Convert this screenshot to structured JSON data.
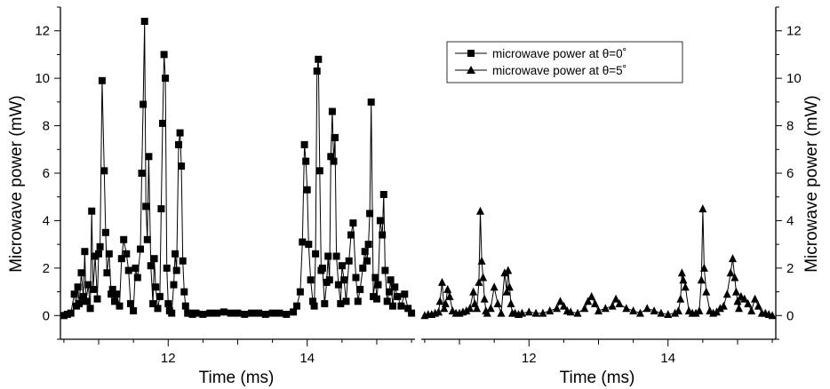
{
  "chart_data": {
    "type": "line",
    "panels": [
      {
        "id": "left",
        "xlim": [
          10.45,
          15.55
        ],
        "ylim": [
          -1.0,
          13.0
        ],
        "xticks": [
          12,
          14
        ],
        "xlabel": "Time (ms)",
        "series": "theta0"
      },
      {
        "id": "right",
        "xlim": [
          10.45,
          15.55
        ],
        "ylim": [
          -1.0,
          13.0
        ],
        "xticks": [
          12,
          14
        ],
        "xlabel": "Time (ms)",
        "series": "theta5"
      }
    ],
    "yticks": [
      0,
      2,
      4,
      6,
      8,
      10,
      12
    ],
    "ylabel": "Microwave power (mW)",
    "grid": false,
    "legend_position": "top-right",
    "series": [
      {
        "key": "theta0",
        "name": "microwave power at θ=0˚",
        "marker": "square",
        "x": [
          10.5,
          10.55,
          10.6,
          10.65,
          10.68,
          10.7,
          10.72,
          10.75,
          10.78,
          10.8,
          10.82,
          10.85,
          10.88,
          10.9,
          10.92,
          10.95,
          10.98,
          11.0,
          11.02,
          11.05,
          11.08,
          11.1,
          11.12,
          11.15,
          11.18,
          11.2,
          11.23,
          11.26,
          11.3,
          11.33,
          11.36,
          11.4,
          11.43,
          11.46,
          11.5,
          11.53,
          11.56,
          11.6,
          11.62,
          11.64,
          11.66,
          11.68,
          11.7,
          11.72,
          11.75,
          11.78,
          11.8,
          11.82,
          11.85,
          11.88,
          11.9,
          11.92,
          11.94,
          11.96,
          11.98,
          12.0,
          12.02,
          12.05,
          12.08,
          12.1,
          12.12,
          12.15,
          12.17,
          12.19,
          12.21,
          12.23,
          12.25,
          12.28,
          12.3,
          12.35,
          12.4,
          12.5,
          12.6,
          12.7,
          12.8,
          12.9,
          13.0,
          13.1,
          13.2,
          13.3,
          13.4,
          13.5,
          13.6,
          13.7,
          13.8,
          13.85,
          13.9,
          13.93,
          13.96,
          13.98,
          14.0,
          14.02,
          14.05,
          14.08,
          14.1,
          14.12,
          14.14,
          14.16,
          14.18,
          14.2,
          14.22,
          14.25,
          14.28,
          14.3,
          14.32,
          14.34,
          14.36,
          14.38,
          14.4,
          14.42,
          14.45,
          14.48,
          14.5,
          14.53,
          14.56,
          14.6,
          14.63,
          14.66,
          14.7,
          14.73,
          14.76,
          14.8,
          14.83,
          14.86,
          14.88,
          14.9,
          14.92,
          14.95,
          14.98,
          15.0,
          15.02,
          15.05,
          15.08,
          15.1,
          15.12,
          15.15,
          15.18,
          15.2,
          15.23,
          15.26,
          15.3,
          15.35,
          15.4,
          15.45,
          15.5
        ],
        "y": [
          0.0,
          0.05,
          0.1,
          0.9,
          0.4,
          1.2,
          0.5,
          1.8,
          0.8,
          2.7,
          0.6,
          1.3,
          0.3,
          4.4,
          1.1,
          2.5,
          0.7,
          2.6,
          2.9,
          9.9,
          6.1,
          3.5,
          1.8,
          2.6,
          0.9,
          1.1,
          0.6,
          0.9,
          0.4,
          2.4,
          3.2,
          2.6,
          1.9,
          0.5,
          0.2,
          2.0,
          1.6,
          2.8,
          6.0,
          8.9,
          12.4,
          4.6,
          3.2,
          6.7,
          2.1,
          0.5,
          2.4,
          1.2,
          0.3,
          0.8,
          4.5,
          8.1,
          11.0,
          10.0,
          2.0,
          0.5,
          0.2,
          0.1,
          1.3,
          2.6,
          1.9,
          7.2,
          7.7,
          6.3,
          2.3,
          1.0,
          0.4,
          0.1,
          0.1,
          0.05,
          0.1,
          0.05,
          0.1,
          0.1,
          0.15,
          0.1,
          0.1,
          0.05,
          0.1,
          0.1,
          0.05,
          0.1,
          0.1,
          0.05,
          0.15,
          0.4,
          1.0,
          3.1,
          7.2,
          6.5,
          5.3,
          3.0,
          1.5,
          0.6,
          0.4,
          2.6,
          10.3,
          10.8,
          6.1,
          1.9,
          2.0,
          0.5,
          1.4,
          2.5,
          1.5,
          6.7,
          8.6,
          6.5,
          7.5,
          2.5,
          1.3,
          0.5,
          2.1,
          1.5,
          0.6,
          2.3,
          3.4,
          3.9,
          1.6,
          0.6,
          1.1,
          2.0,
          2.7,
          2.3,
          3.0,
          4.3,
          9.0,
          0.8,
          1.6,
          0.7,
          1.3,
          4.0,
          3.4,
          5.1,
          1.9,
          0.6,
          1.0,
          1.5,
          0.4,
          1.2,
          0.8,
          0.4,
          0.9,
          0.3,
          0.1
        ]
      },
      {
        "key": "theta5",
        "name": "microwave power at θ=5˚",
        "marker": "triangle",
        "x": [
          10.5,
          10.55,
          10.6,
          10.65,
          10.7,
          10.72,
          10.75,
          10.78,
          10.8,
          10.83,
          10.86,
          10.9,
          10.95,
          11.0,
          11.05,
          11.1,
          11.15,
          11.2,
          11.22,
          11.25,
          11.28,
          11.3,
          11.32,
          11.34,
          11.36,
          11.38,
          11.4,
          11.45,
          11.5,
          11.55,
          11.6,
          11.65,
          11.68,
          11.7,
          11.72,
          11.74,
          11.76,
          11.8,
          11.85,
          11.9,
          12.0,
          12.1,
          12.2,
          12.3,
          12.4,
          12.45,
          12.5,
          12.55,
          12.6,
          12.7,
          12.8,
          12.85,
          12.9,
          12.95,
          13.0,
          13.1,
          13.2,
          13.25,
          13.3,
          13.4,
          13.5,
          13.6,
          13.7,
          13.8,
          13.9,
          14.0,
          14.1,
          14.15,
          14.18,
          14.2,
          14.22,
          14.25,
          14.3,
          14.35,
          14.4,
          14.45,
          14.48,
          14.5,
          14.52,
          14.55,
          14.6,
          14.65,
          14.7,
          14.75,
          14.8,
          14.85,
          14.9,
          14.93,
          14.96,
          14.98,
          15.0,
          15.02,
          15.05,
          15.1,
          15.15,
          15.2,
          15.25,
          15.3,
          15.35,
          15.4,
          15.45,
          15.5
        ],
        "y": [
          0.0,
          0.05,
          0.05,
          0.1,
          0.15,
          0.6,
          1.4,
          0.3,
          0.5,
          1.1,
          0.8,
          0.2,
          0.1,
          0.1,
          0.15,
          0.2,
          0.3,
          1.0,
          0.5,
          0.3,
          1.4,
          4.4,
          2.3,
          1.6,
          0.7,
          0.2,
          0.1,
          0.3,
          1.2,
          0.5,
          0.1,
          1.8,
          1.0,
          1.9,
          1.2,
          0.5,
          0.1,
          0.1,
          0.05,
          0.1,
          0.15,
          0.1,
          0.1,
          0.2,
          0.3,
          0.6,
          0.4,
          0.2,
          0.15,
          0.1,
          0.3,
          0.6,
          0.8,
          0.5,
          0.2,
          0.3,
          0.4,
          0.7,
          0.5,
          0.3,
          0.2,
          0.1,
          0.3,
          0.2,
          0.1,
          0.05,
          0.1,
          0.2,
          0.7,
          1.8,
          1.5,
          1.2,
          0.2,
          0.1,
          0.1,
          0.2,
          1.5,
          4.5,
          2.0,
          1.0,
          0.2,
          0.1,
          0.15,
          0.3,
          0.4,
          0.9,
          1.8,
          2.4,
          1.6,
          1.0,
          0.6,
          0.3,
          0.8,
          0.7,
          0.5,
          0.2,
          0.7,
          0.4,
          0.1,
          0.1,
          0.05,
          0.0
        ]
      }
    ]
  }
}
